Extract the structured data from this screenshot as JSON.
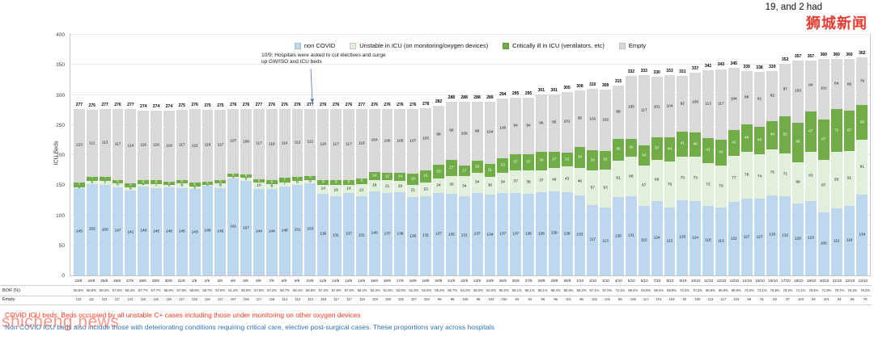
{
  "page": {
    "top_right_text": "19, and 2 had",
    "watermark_cn": "狮城新闻",
    "watermark_en": "shicheng.news",
    "note_covid": "COVID ICU beds: Beds occupied by all unstable C+ cases including those under monitoring on other oxygen devices",
    "note_non_covid": "Non COVID ICU beds also include those with deteriorating conditions requiring critical care, elective post-surgical cases. These proportions vary across hospitals"
  },
  "chart_data": {
    "type": "bar",
    "stacked": true,
    "title": "",
    "ylabel": "ICU Beds",
    "xlabel": "",
    "ylim": [
      0,
      400
    ],
    "yticks": [
      0,
      50,
      100,
      150,
      200,
      250,
      300,
      350,
      400
    ],
    "grid": true,
    "legend_position": "top",
    "annotation": {
      "text": "10/9: Hospitals were asked to cut electives and surge\nup GW/ISO and ICU beds",
      "target_date": "10/9"
    },
    "categories": [
      "23/8",
      "24/8",
      "25/8",
      "26/8",
      "27/8",
      "28/8",
      "29/8",
      "30/8",
      "31/8",
      "1/9",
      "2/9",
      "3/9",
      "4/9",
      "5/9",
      "6/9",
      "7/9",
      "8/9",
      "9/9",
      "10/9",
      "11/9",
      "12/9",
      "13/9",
      "14/9",
      "15/9",
      "16/9",
      "17/9",
      "18/9",
      "19/9",
      "20/9",
      "21/9",
      "22/9",
      "23/9",
      "24/9",
      "25/9",
      "26/9",
      "27/9",
      "28/9",
      "29/9",
      "30/9",
      "1/10",
      "2/10",
      "3/10",
      "4/10",
      "5/10",
      "6/10",
      "7/10",
      "8/10",
      "9/10",
      "10/10",
      "11/10",
      "12/10",
      "13/10",
      "14/10",
      "15/10",
      "16/10",
      "17/10",
      "18/10",
      "19/10",
      "20/10",
      "21/10",
      "22/10",
      "23/10"
    ],
    "series": [
      {
        "key": "non_covid",
        "name": "non COVID",
        "color": "#BDD7EE",
        "values": [
          145,
          152,
          150,
          147,
          141,
          148,
          145,
          146,
          145,
          143,
          149,
          145,
          161,
          157,
          144,
          144,
          148,
          151,
          153,
          136,
          131,
          137,
          131,
          140,
          137,
          138,
          130,
          131,
          137,
          135,
          131,
          137,
          134,
          137,
          137,
          136,
          138,
          139,
          138,
          133,
          117,
          113,
          130,
          131,
          115,
          124,
          113,
          125,
          124,
          115,
          113,
          122,
          127,
          127,
          133,
          132,
          120,
          123,
          105,
          112,
          116,
          134
        ]
      },
      {
        "key": "unstable",
        "name": "Unstable in ICU (on monitoring/oxygen devices)",
        "color": "#E2EFDA",
        "values": [
          2,
          5,
          7,
          6,
          6,
          4,
          7,
          5,
          8,
          5,
          2,
          8,
          3,
          5,
          10,
          8,
          7,
          6,
          6,
          14,
          19,
          14,
          21,
          18,
          21,
          19,
          21,
          23,
          24,
          30,
          34,
          34,
          30,
          34,
          37,
          38,
          37,
          40,
          43,
          46,
          57,
          63,
          61,
          66,
          67,
          68,
          76,
          73,
          73,
          72,
          70,
          77,
          78,
          74,
          76,
          71,
          68,
          83,
          87,
          93,
          91,
          91
        ]
      },
      {
        "key": "critical",
        "name": "Critically ill in ICU (ventilators, etc)",
        "color": "#70AD47",
        "values": [
          7,
          7,
          7,
          6,
          6,
          6,
          6,
          5,
          5,
          6,
          5,
          5,
          5,
          6,
          6,
          6,
          7,
          7,
          6,
          8,
          9,
          8,
          9,
          14,
          12,
          14,
          18,
          21,
          23,
          27,
          17,
          19,
          21,
          23,
          27,
          27,
          30,
          27,
          23,
          34,
          34,
          31,
          36,
          30,
          34,
          37,
          40,
          41,
          40,
          41,
          43,
          42,
          46,
          46,
          48,
          62,
          66,
          67,
          67,
          71,
          67,
          58
        ]
      },
      {
        "key": "empty",
        "name": "Empty",
        "color": "#D9D9D9",
        "values": [
          123,
          111,
          113,
          117,
          124,
          116,
          116,
          118,
          117,
          122,
          119,
          117,
          107,
          108,
          117,
          118,
          114,
          112,
          112,
          118,
          117,
          117,
          116,
          104,
          106,
          105,
          107,
          103,
          98,
          96,
          106,
          98,
          104,
          100,
          94,
          94,
          96,
          95,
          101,
          95,
          102,
          102,
          88,
          105,
          117,
          101,
          104,
          92,
          100,
          113,
          117,
          104,
          88,
          91,
          82,
          87,
          103,
          84,
          101,
          84,
          86,
          79
        ]
      }
    ],
    "totals": [
      277,
      275,
      277,
      276,
      277,
      274,
      274,
      274,
      275,
      276,
      275,
      275,
      276,
      276,
      277,
      276,
      276,
      276,
      277,
      276,
      276,
      276,
      277,
      276,
      276,
      276,
      276,
      278,
      282,
      288,
      288,
      288,
      289,
      294,
      295,
      295,
      301,
      301,
      305,
      308,
      310,
      309,
      315,
      332,
      333,
      330,
      333,
      331,
      337,
      341,
      343,
      345,
      339,
      338,
      339,
      352,
      357,
      357,
      360,
      360,
      360,
      362
    ],
    "table": {
      "rows": [
        {
          "label": "BOR (%)",
          "values": [
            "55.6%",
            "59.6%",
            "59.2%",
            "57.6%",
            "55.2%",
            "57.7%",
            "57.7%",
            "56.9%",
            "57.5%",
            "55.8%",
            "56.7%",
            "57.5%",
            "61.2%",
            "60.9%",
            "57.8%",
            "57.2%",
            "58.7%",
            "59.4%",
            "59.6%",
            "57.2%",
            "57.6%",
            "57.6%",
            "58.1%",
            "62.3%",
            "61.6%",
            "62.0%",
            "61.2%",
            "62.9%",
            "65.2%",
            "66.7%",
            "63.2%",
            "66.0%",
            "64.0%",
            "66.0%",
            "68.1%",
            "68.1%",
            "68.1%",
            "68.4%",
            "66.9%",
            "69.2%",
            "67.1%",
            "67.0%",
            "72.1%",
            "68.4%",
            "64.9%",
            "69.4%",
            "68.8%",
            "72.2%",
            "70.3%",
            "66.9%",
            "65.9%",
            "69.9%",
            "74.0%",
            "73.1%",
            "75.8%",
            "75.3%",
            "71.1%",
            "76.5%",
            "71.9%",
            "76.7%",
            "76.1%",
            "78.2%"
          ]
        },
        {
          "label": "Empty",
          "values": [
            123,
            111,
            113,
            117,
            124,
            116,
            116,
            118,
            117,
            122,
            119,
            117,
            107,
            108,
            117,
            118,
            114,
            112,
            112,
            118,
            117,
            117,
            116,
            104,
            106,
            105,
            107,
            103,
            98,
            96,
            106,
            98,
            104,
            100,
            94,
            94,
            96,
            95,
            101,
            95,
            102,
            102,
            88,
            105,
            117,
            101,
            104,
            92,
            100,
            113,
            117,
            104,
            88,
            91,
            82,
            87,
            103,
            84,
            101,
            84,
            86,
            79
          ]
        }
      ]
    }
  }
}
